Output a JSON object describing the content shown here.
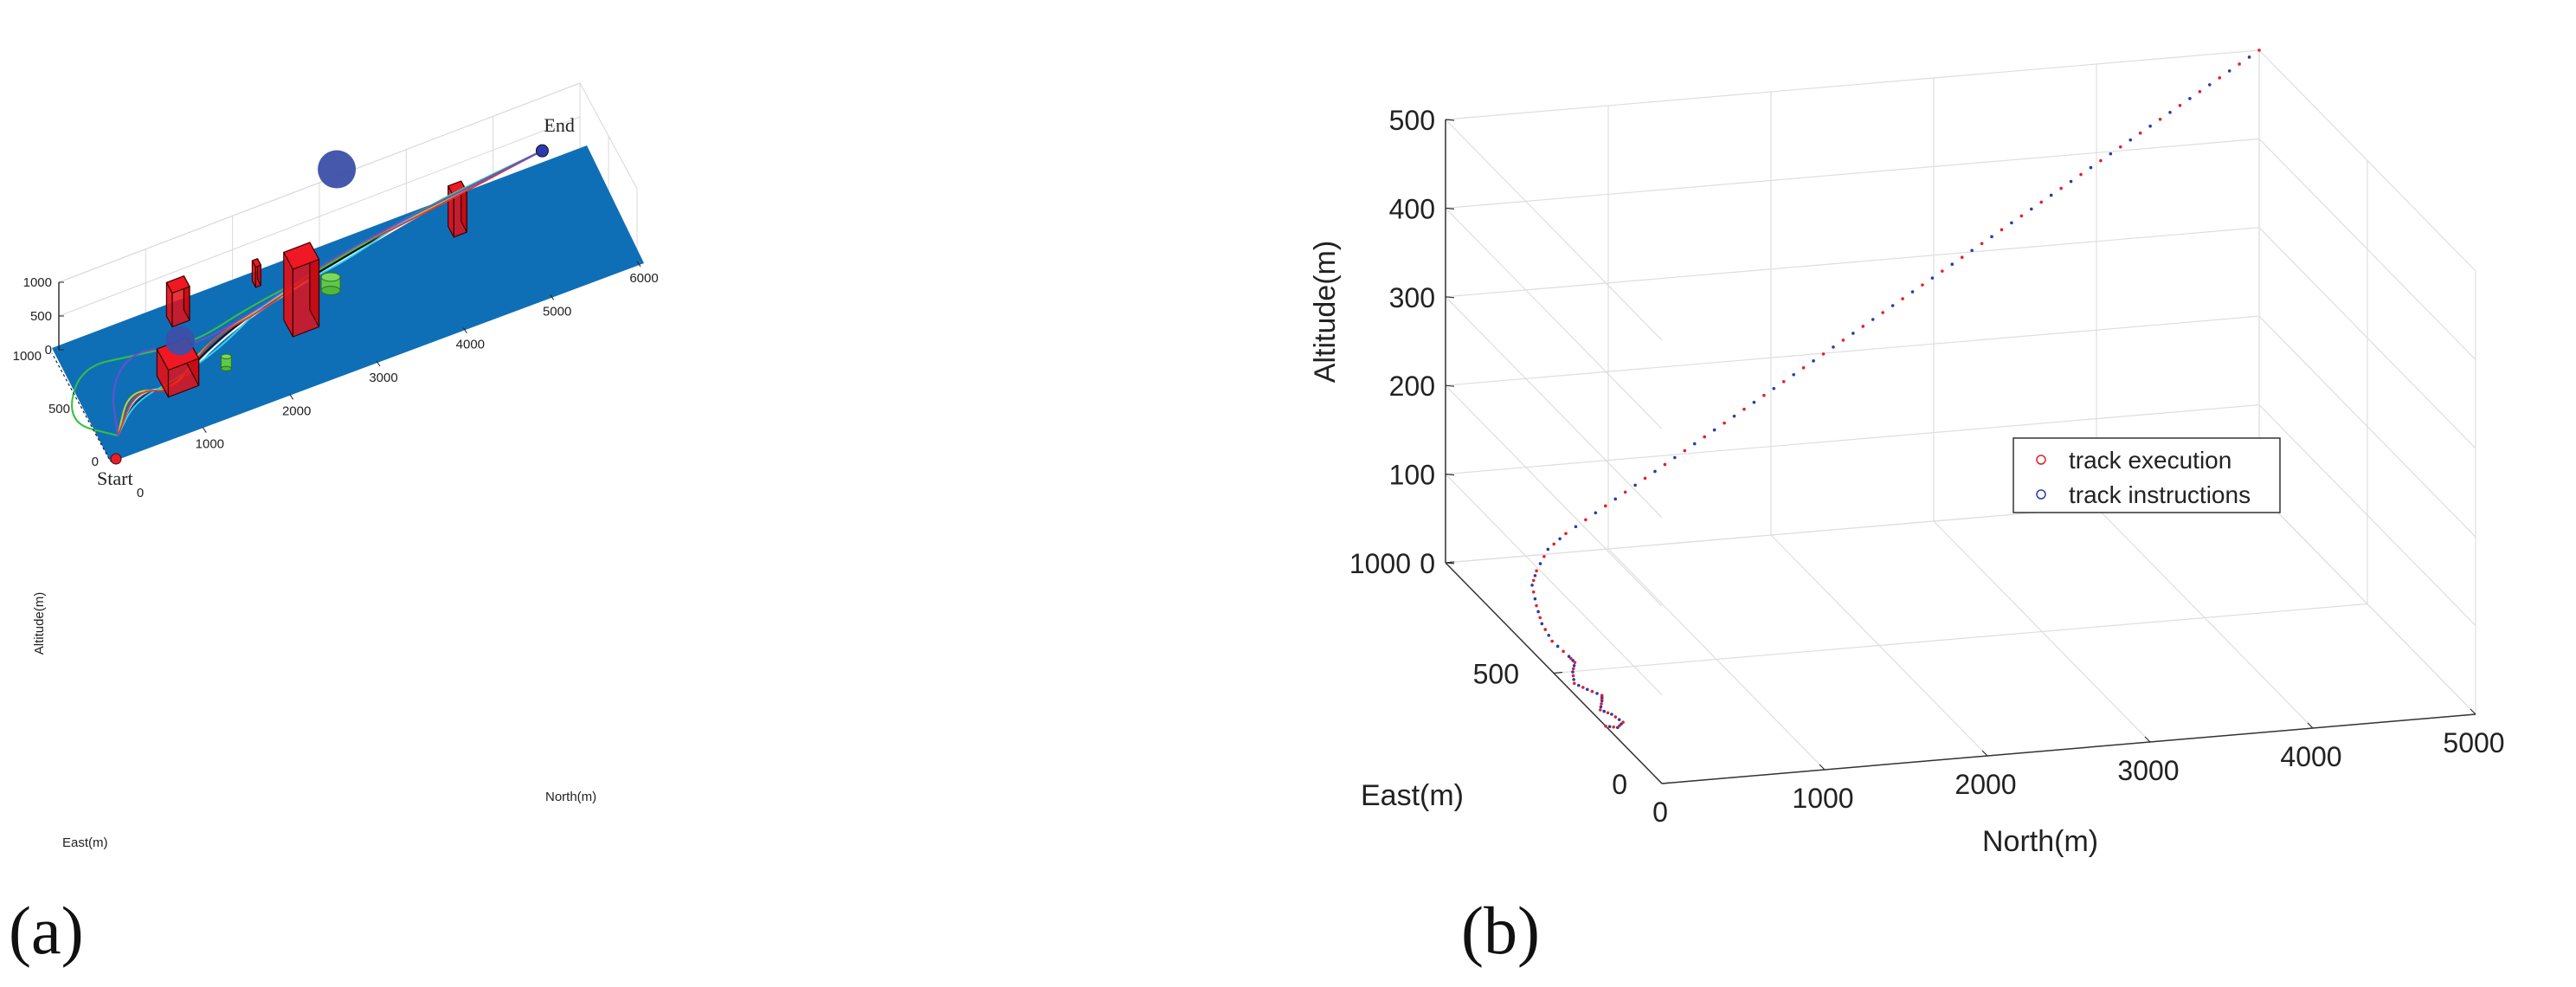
{
  "panel_labels": {
    "a": "(a)",
    "b": "(b)"
  },
  "chart_data": [
    {
      "type": "scatter",
      "panel": "(a)",
      "title": "",
      "xlabel": "North(m)",
      "ylabel": "East(m)",
      "zlabel": "Altitude(m)",
      "xlim": [
        0,
        6000
      ],
      "ylim": [
        0,
        1000
      ],
      "zlim": [
        0,
        1000
      ],
      "xticks": [
        "1000",
        "2000",
        "3000",
        "4000",
        "5000",
        "6000"
      ],
      "yticks": [
        "0",
        "500",
        "1000"
      ],
      "zticks": [
        "0",
        "500",
        "1000"
      ],
      "annotations": {
        "start": "Start",
        "end": "End",
        "origin_zero": "0"
      },
      "ground_color": "#0f6fb6",
      "obstacle_color": "#e0101a",
      "sphere_color": "#3c4fa8",
      "cylinder_color": "#5ec84a",
      "grid": true,
      "start_point": {
        "north": 0,
        "east": 0,
        "alt": 0
      },
      "end_point": {
        "north": 5500,
        "east": 900,
        "alt": 400
      },
      "series": [
        {
          "color": "#ffffff",
          "points": [
            [
              120,
              150
            ],
            [
              500,
              420
            ],
            [
              900,
              320
            ],
            [
              1500,
              520
            ],
            [
              2200,
              650
            ],
            [
              3000,
              720
            ],
            [
              4000,
              820
            ],
            [
              5000,
              880
            ],
            [
              5500,
              900
            ]
          ]
        },
        {
          "color": "#111111",
          "points": [
            [
              120,
              150
            ],
            [
              500,
              380
            ],
            [
              900,
              340
            ],
            [
              1500,
              540
            ],
            [
              2200,
              660
            ],
            [
              3000,
              740
            ],
            [
              4000,
              830
            ],
            [
              5000,
              885
            ],
            [
              5500,
              900
            ]
          ]
        },
        {
          "color": "#c8d020",
          "points": [
            [
              120,
              150
            ],
            [
              450,
              460
            ],
            [
              850,
              300
            ],
            [
              1400,
              560
            ],
            [
              2100,
              640
            ],
            [
              2900,
              760
            ],
            [
              3900,
              820
            ],
            [
              4900,
              880
            ],
            [
              5500,
              900
            ]
          ]
        },
        {
          "color": "#39d0e8",
          "points": [
            [
              120,
              150
            ],
            [
              450,
              350
            ],
            [
              950,
              380
            ],
            [
              1550,
              480
            ],
            [
              2250,
              700
            ],
            [
              3050,
              700
            ],
            [
              4050,
              860
            ],
            [
              5050,
              890
            ],
            [
              5500,
              900
            ]
          ]
        },
        {
          "color": "#d93a3a",
          "points": [
            [
              120,
              150
            ],
            [
              520,
              440
            ],
            [
              880,
              280
            ],
            [
              1450,
              580
            ],
            [
              2150,
              620
            ],
            [
              2950,
              780
            ],
            [
              3950,
              810
            ],
            [
              4950,
              870
            ],
            [
              5500,
              900
            ]
          ]
        },
        {
          "color": "#38c040",
          "points": [
            [
              120,
              150
            ],
            [
              -300,
              400
            ],
            [
              100,
              800
            ],
            [
              700,
              700
            ],
            [
              1300,
              600
            ],
            [
              2000,
              690
            ],
            [
              2800,
              730
            ],
            [
              3800,
              840
            ],
            [
              4800,
              880
            ],
            [
              5500,
              900
            ]
          ]
        },
        {
          "color": "#6a4fd0",
          "points": [
            [
              120,
              150
            ],
            [
              300,
              550
            ],
            [
              700,
              750
            ],
            [
              1200,
              580
            ],
            [
              1900,
              620
            ],
            [
              2700,
              750
            ],
            [
              3700,
              830
            ],
            [
              4700,
              870
            ],
            [
              5500,
              900
            ]
          ]
        }
      ]
    },
    {
      "type": "scatter",
      "panel": "(b)",
      "title": "",
      "xlabel": "North(m)",
      "ylabel": "East(m)",
      "zlabel": "Altitude(m)",
      "xlim": [
        0,
        5000
      ],
      "ylim": [
        0,
        1000
      ],
      "zlim": [
        0,
        500
      ],
      "xticks": [
        "0",
        "1000",
        "2000",
        "3000",
        "4000",
        "5000"
      ],
      "yticks": [
        "0",
        "500",
        "1000"
      ],
      "zticks": [
        "0",
        "100",
        "200",
        "300",
        "400",
        "500"
      ],
      "grid": true,
      "legend_position": "middle-right",
      "series": [
        {
          "name": "track execution",
          "marker": "o",
          "color": "#e4202a"
        },
        {
          "name": "track instructions",
          "marker": "o",
          "color": "#2a3ab0"
        }
      ]
    }
  ]
}
